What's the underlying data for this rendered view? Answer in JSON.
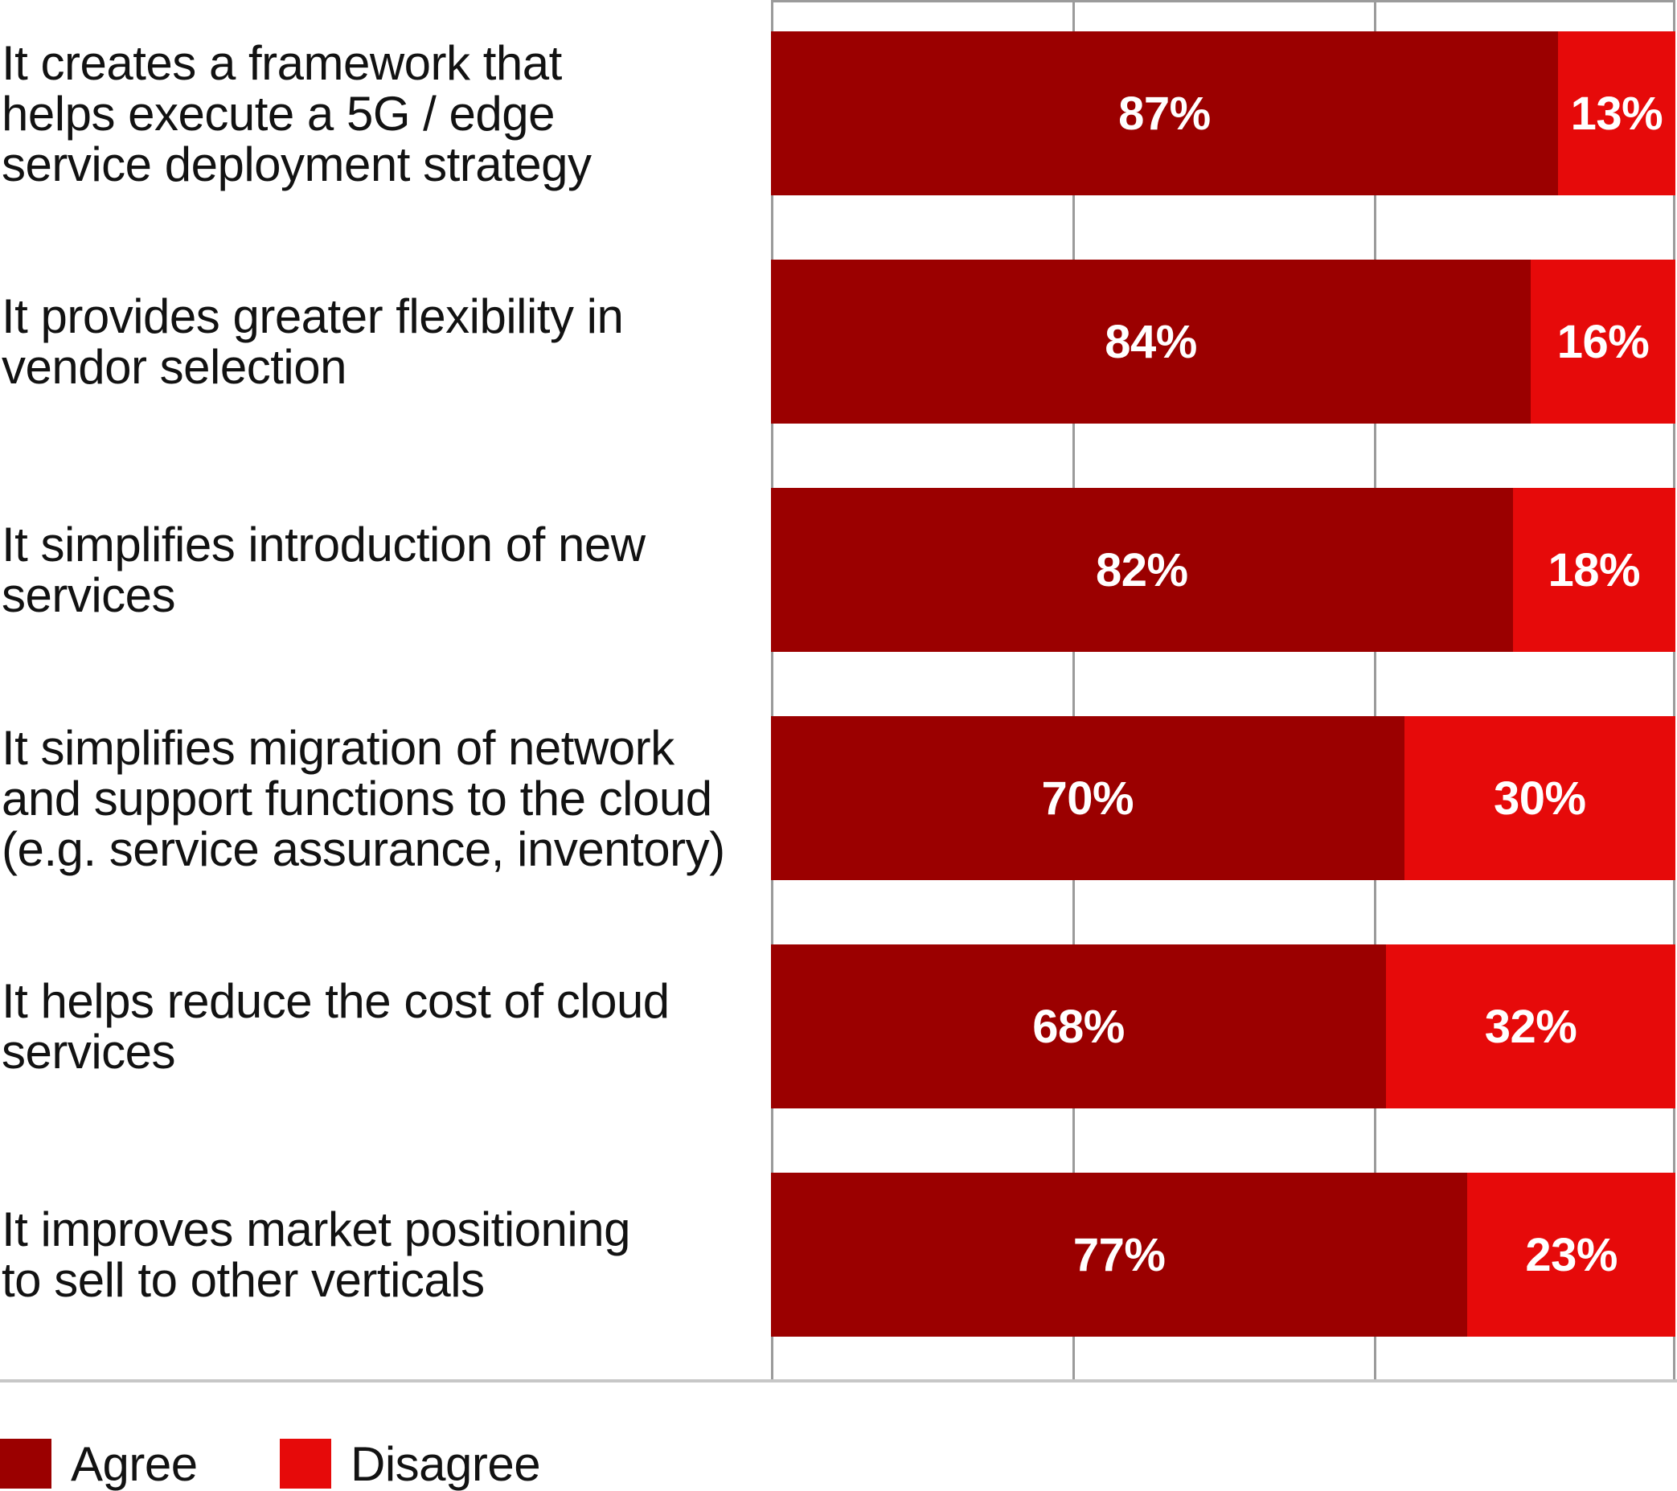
{
  "chart_data": {
    "type": "bar",
    "orientation": "horizontal",
    "stacked": true,
    "title": "",
    "xlabel": "",
    "ylabel": "",
    "xlim": [
      0,
      100
    ],
    "value_unit": "%",
    "grid": true,
    "gridline_positions_pct": [
      0,
      33.33,
      66.67,
      100
    ],
    "legend_position": "bottom-left",
    "categories": [
      [
        "It creates a framework that",
        "helps execute a 5G / edge",
        "service deployment strategy"
      ],
      [
        "It provides greater flexibility in",
        "vendor selection"
      ],
      [
        "It simplifies introduction of new",
        "services"
      ],
      [
        "It simplifies migration of network",
        "and support functions to the cloud",
        "(e.g. service assurance, inventory)"
      ],
      [
        "It helps reduce the cost of cloud",
        "services"
      ],
      [
        "It improves market positioning",
        "to sell to other verticals"
      ]
    ],
    "series": [
      {
        "name": "Agree",
        "color": "#9b0000",
        "values": [
          87,
          84,
          82,
          70,
          68,
          77
        ]
      },
      {
        "name": "Disagree",
        "color": "#e60a0a",
        "values": [
          13,
          16,
          18,
          30,
          32,
          23
        ]
      }
    ],
    "bar_value_labels": [
      [
        "87%",
        "13%"
      ],
      [
        "84%",
        "16%"
      ],
      [
        "82%",
        "18%"
      ],
      [
        "70%",
        "30%"
      ],
      [
        "68%",
        "32%"
      ],
      [
        "77%",
        "23%"
      ]
    ]
  },
  "legend": {
    "items": [
      {
        "label": "Agree",
        "color": "#9b0000"
      },
      {
        "label": "Disagree",
        "color": "#e60a0a"
      }
    ]
  },
  "colors": {
    "agree": "#9b0000",
    "disagree": "#e60a0a",
    "gridline": "#9b9b9b",
    "separator": "#c7c7c7",
    "label_text": "#121212",
    "value_text": "#ffffff"
  }
}
